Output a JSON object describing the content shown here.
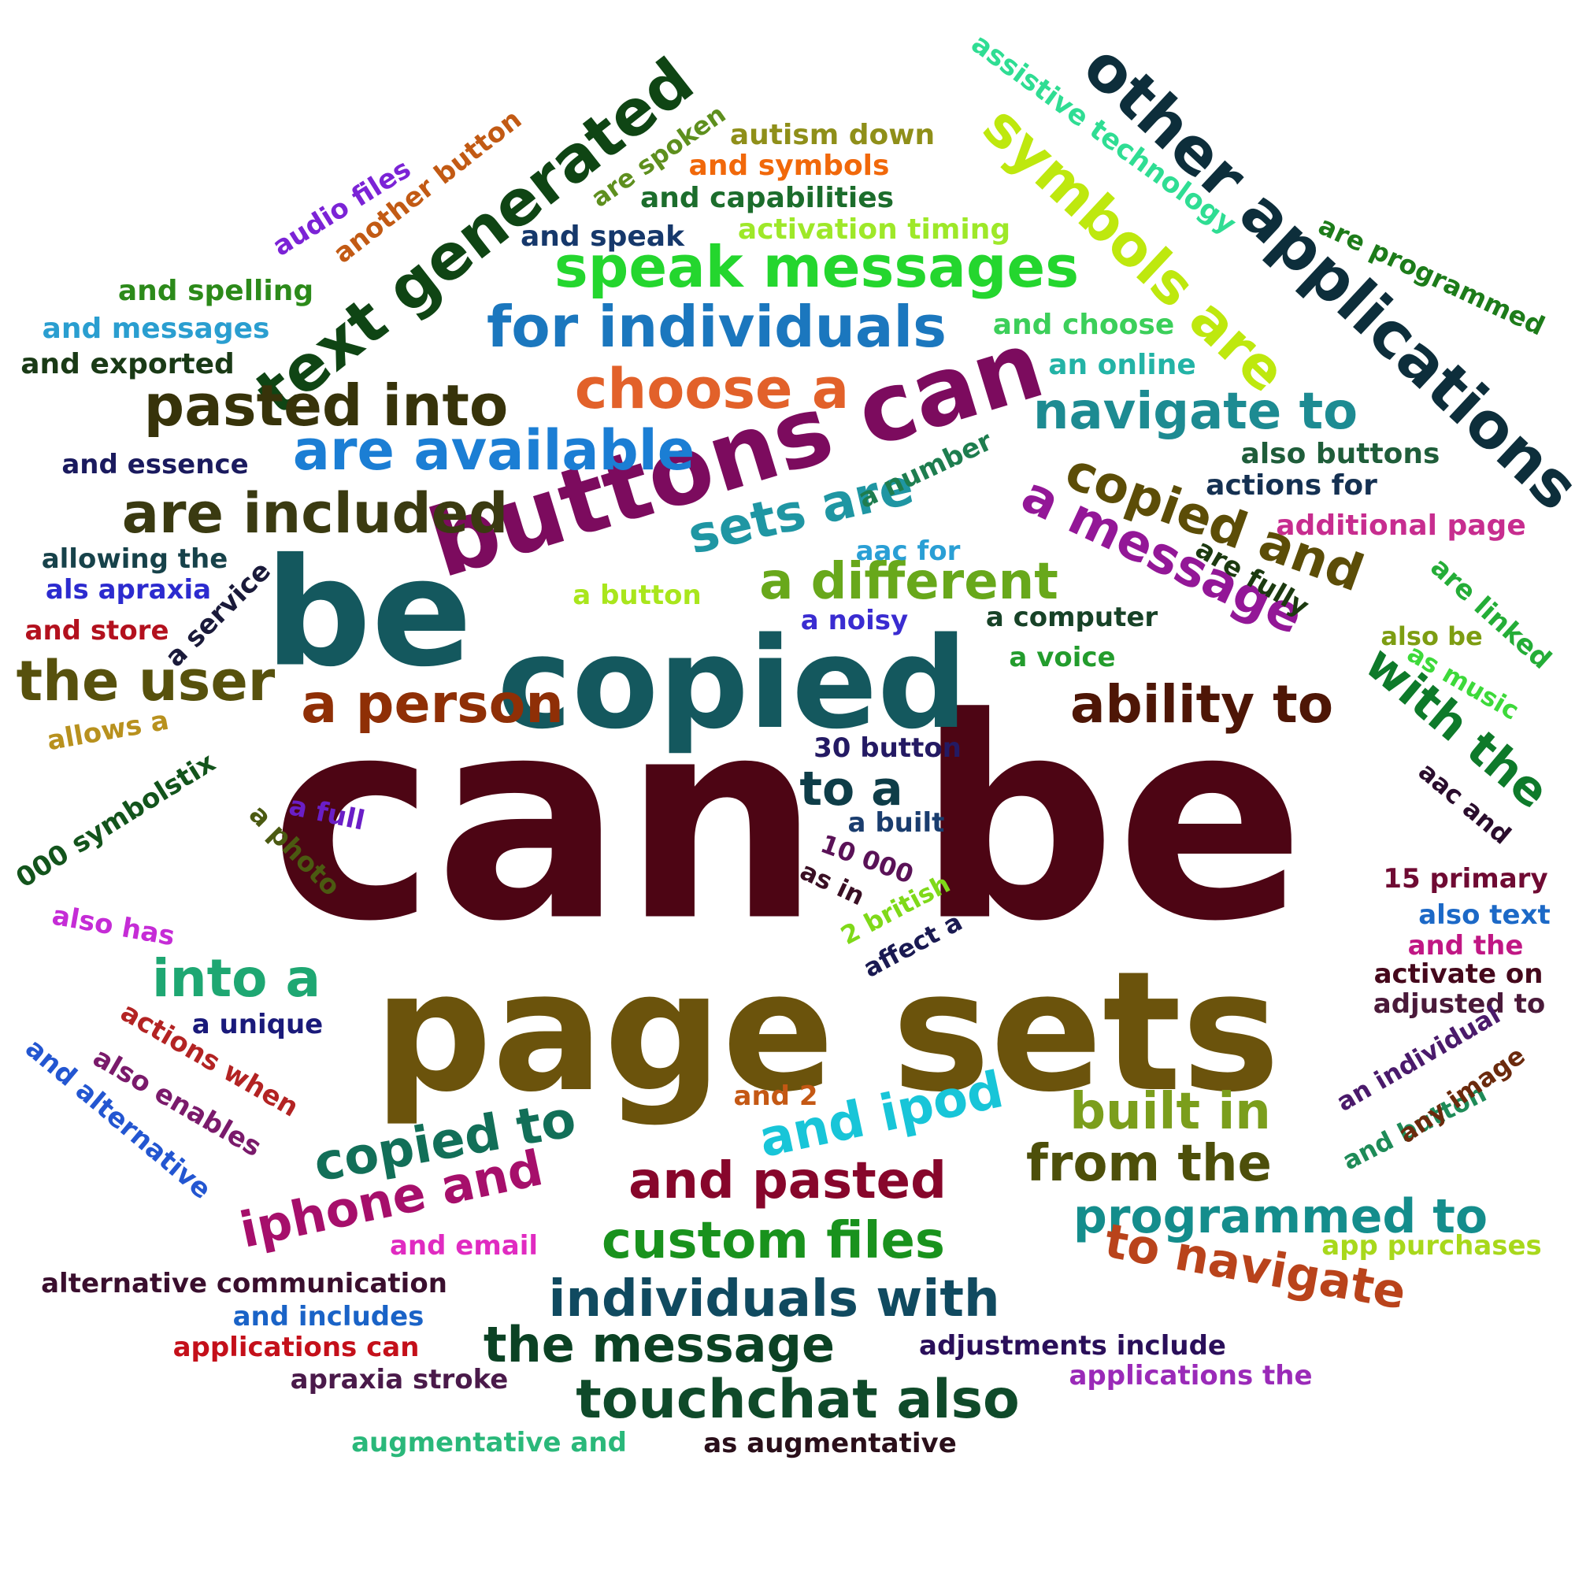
{
  "words": [
    {
      "text": "can be",
      "color": "#4d0514"
    },
    {
      "text": "page sets",
      "color": "#6b530c"
    },
    {
      "text": "be",
      "color": "#14585e"
    },
    {
      "text": "copied",
      "color": "#14585e"
    },
    {
      "text": "buttons can",
      "color": "#7c0b5e"
    },
    {
      "text": "text generated",
      "color": "#0f4514"
    },
    {
      "text": "other applications",
      "color": "#0d2e3b"
    },
    {
      "text": "symbols are",
      "color": "#bee80e"
    },
    {
      "text": "speak messages",
      "color": "#24d62e"
    },
    {
      "text": "for individuals",
      "color": "#1b77be"
    },
    {
      "text": "pasted into",
      "color": "#37330a"
    },
    {
      "text": "choose a",
      "color": "#e2612a"
    },
    {
      "text": "are available",
      "color": "#1b7ed4"
    },
    {
      "text": "navigate to",
      "color": "#1d8b92"
    },
    {
      "text": "are included",
      "color": "#3a3a11"
    },
    {
      "text": "copied and",
      "color": "#5c4d07"
    },
    {
      "text": "a message",
      "color": "#931797"
    },
    {
      "text": "sets are",
      "color": "#1f96a3"
    },
    {
      "text": "a different",
      "color": "#68a81b"
    },
    {
      "text": "the user",
      "color": "#57510d"
    },
    {
      "text": "a person",
      "color": "#8f2f06"
    },
    {
      "text": "ability to",
      "color": "#4e1606"
    },
    {
      "text": "with the",
      "color": "#0e7a2a"
    },
    {
      "text": "to a",
      "color": "#0e3d48"
    },
    {
      "text": "into a",
      "color": "#1ea772"
    },
    {
      "text": "copied to",
      "color": "#126f58"
    },
    {
      "text": "and ipod",
      "color": "#18c5d8"
    },
    {
      "text": "built in",
      "color": "#7b9e1c"
    },
    {
      "text": "iphone and",
      "color": "#a60f6b"
    },
    {
      "text": "and pasted",
      "color": "#87062b"
    },
    {
      "text": "from the",
      "color": "#4d4f0a"
    },
    {
      "text": "programmed to",
      "color": "#148d8c"
    },
    {
      "text": "custom files",
      "color": "#19921d"
    },
    {
      "text": "to navigate",
      "color": "#b9431b"
    },
    {
      "text": "individuals with",
      "color": "#104a60"
    },
    {
      "text": "the message",
      "color": "#0b4224"
    },
    {
      "text": "touchchat also",
      "color": "#0f4a2a"
    },
    {
      "text": "assistive technology",
      "color": "#2fdd93"
    },
    {
      "text": "are programmed",
      "color": "#1d7c1a"
    },
    {
      "text": "autism down",
      "color": "#8f8f19"
    },
    {
      "text": "and symbols",
      "color": "#f1680a"
    },
    {
      "text": "are spoken",
      "color": "#5e8f1e"
    },
    {
      "text": "and capabilities",
      "color": "#1c6d2c"
    },
    {
      "text": "activation timing",
      "color": "#9ee829"
    },
    {
      "text": "and speak",
      "color": "#16386b"
    },
    {
      "text": "audio files",
      "color": "#7b23d6"
    },
    {
      "text": "another button",
      "color": "#c25a14"
    },
    {
      "text": "and spelling",
      "color": "#2c8a1a"
    },
    {
      "text": "and messages",
      "color": "#2a9ed0"
    },
    {
      "text": "and exported",
      "color": "#1a3a16"
    },
    {
      "text": "and choose",
      "color": "#3ccf5a"
    },
    {
      "text": "an online",
      "color": "#23b3a6"
    },
    {
      "text": "also buttons",
      "color": "#1f5d3a"
    },
    {
      "text": "actions for",
      "color": "#153152"
    },
    {
      "text": "additional page",
      "color": "#c72d8f"
    },
    {
      "text": "are fully",
      "color": "#1c3a10"
    },
    {
      "text": "are linked",
      "color": "#24ad37"
    },
    {
      "text": "also be",
      "color": "#7d9d12"
    },
    {
      "text": "as music",
      "color": "#3dd93a"
    },
    {
      "text": "aac and",
      "color": "#2a0d2d"
    },
    {
      "text": "and essence",
      "color": "#1a1a5e"
    },
    {
      "text": "allowing the",
      "color": "#17424a"
    },
    {
      "text": "als apraxia",
      "color": "#2c2bcf"
    },
    {
      "text": "a service",
      "color": "#1a1a3a"
    },
    {
      "text": "and store",
      "color": "#b3111e"
    },
    {
      "text": "a number",
      "color": "#1e7d4f"
    },
    {
      "text": "aac for",
      "color": "#2a9fd5"
    },
    {
      "text": "a button",
      "color": "#a9e61c"
    },
    {
      "text": "a noisy",
      "color": "#3a2cd1"
    },
    {
      "text": "a computer",
      "color": "#174227"
    },
    {
      "text": "a voice",
      "color": "#239c2d"
    },
    {
      "text": "allows a",
      "color": "#b8911e"
    },
    {
      "text": "000 symbolstix",
      "color": "#13541c"
    },
    {
      "text": "a full",
      "color": "#6a1ec7"
    },
    {
      "text": "a photo",
      "color": "#4b5a11"
    },
    {
      "text": "30 button",
      "color": "#241a63"
    },
    {
      "text": "a built",
      "color": "#1a3d6e"
    },
    {
      "text": "10 000",
      "color": "#5a1257"
    },
    {
      "text": "as in",
      "color": "#3a0f24"
    },
    {
      "text": "2 british",
      "color": "#7fd919"
    },
    {
      "text": "affect a",
      "color": "#1a1a52"
    },
    {
      "text": "15 primary",
      "color": "#6f0b33"
    },
    {
      "text": "also text",
      "color": "#1c69c7"
    },
    {
      "text": "and the",
      "color": "#c01784"
    },
    {
      "text": "activate on",
      "color": "#45081c"
    },
    {
      "text": "adjusted to",
      "color": "#4a1a3a"
    },
    {
      "text": "also has",
      "color": "#c52cd6"
    },
    {
      "text": "a unique",
      "color": "#1a1a7a"
    },
    {
      "text": "actions when",
      "color": "#b32323"
    },
    {
      "text": "also enables",
      "color": "#7a1a6b"
    },
    {
      "text": "and alternative",
      "color": "#2356d1"
    },
    {
      "text": "an individual",
      "color": "#4a1a6b"
    },
    {
      "text": "and button",
      "color": "#1e8b58"
    },
    {
      "text": "any image",
      "color": "#6b2a0d"
    },
    {
      "text": "and 2",
      "color": "#c45814"
    },
    {
      "text": "app purchases",
      "color": "#a8d81c"
    },
    {
      "text": "and email",
      "color": "#e02bc1"
    },
    {
      "text": "alternative communication",
      "color": "#3a0f2e"
    },
    {
      "text": "and includes",
      "color": "#1a63c7"
    },
    {
      "text": "applications can",
      "color": "#c4101a"
    },
    {
      "text": "adjustments include",
      "color": "#2a0f5a"
    },
    {
      "text": "apraxia stroke",
      "color": "#4a1a4a"
    },
    {
      "text": "applications the",
      "color": "#9a2ab8"
    },
    {
      "text": "augmentative and",
      "color": "#2ab87a"
    },
    {
      "text": "as augmentative",
      "color": "#2a0f1a"
    }
  ]
}
